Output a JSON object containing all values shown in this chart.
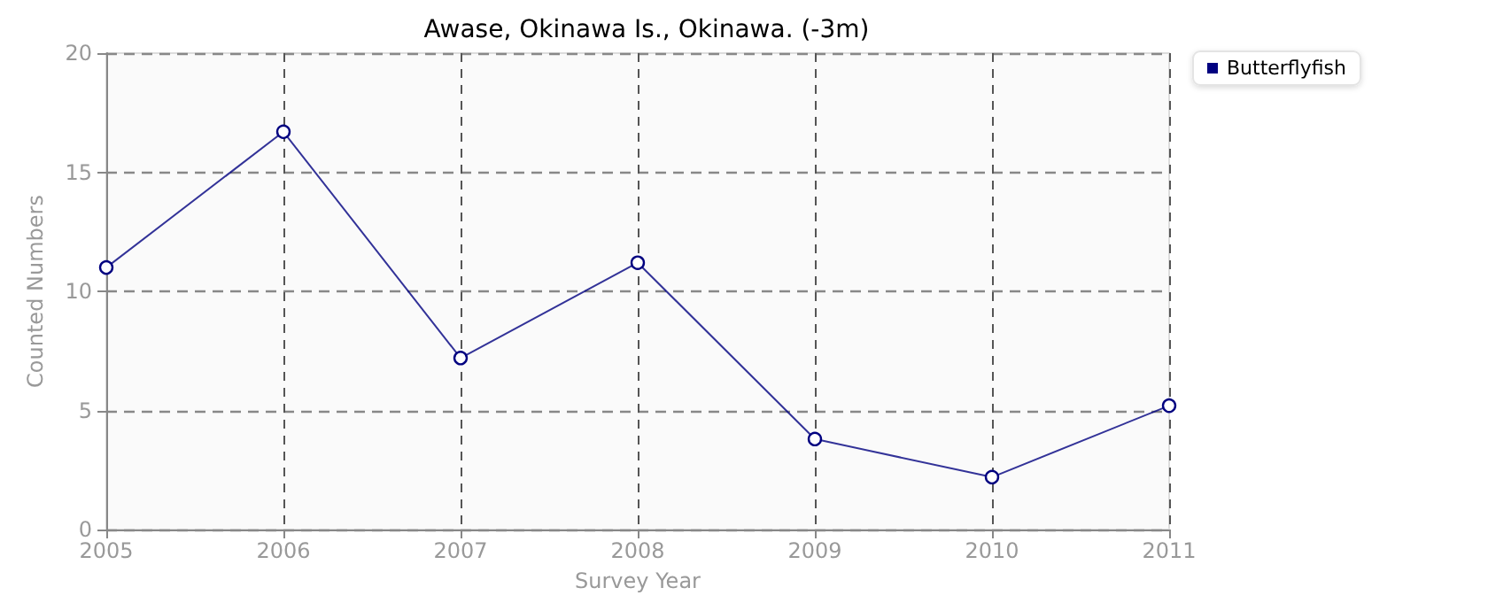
{
  "chart_data": {
    "type": "line",
    "title": "Awase, Okinawa Is., Okinawa. (-3m)",
    "xlabel": "Survey Year",
    "ylabel": "Counted Numbers",
    "x": [
      2005,
      2006,
      2007,
      2008,
      2009,
      2010,
      2011
    ],
    "series": [
      {
        "name": "Butterflyfish",
        "color": "#000080",
        "values": [
          11,
          16.7,
          7.2,
          11.2,
          3.8,
          2.2,
          5.2
        ]
      }
    ],
    "xlim": [
      2005,
      2011
    ],
    "xticks": [
      2005,
      2006,
      2007,
      2008,
      2009,
      2010,
      2011
    ],
    "ylim": [
      0,
      20
    ],
    "yticks": [
      0,
      5,
      10,
      15,
      20
    ],
    "grid": true,
    "legend": "top right",
    "marker": "circle",
    "line_style": "solid"
  }
}
